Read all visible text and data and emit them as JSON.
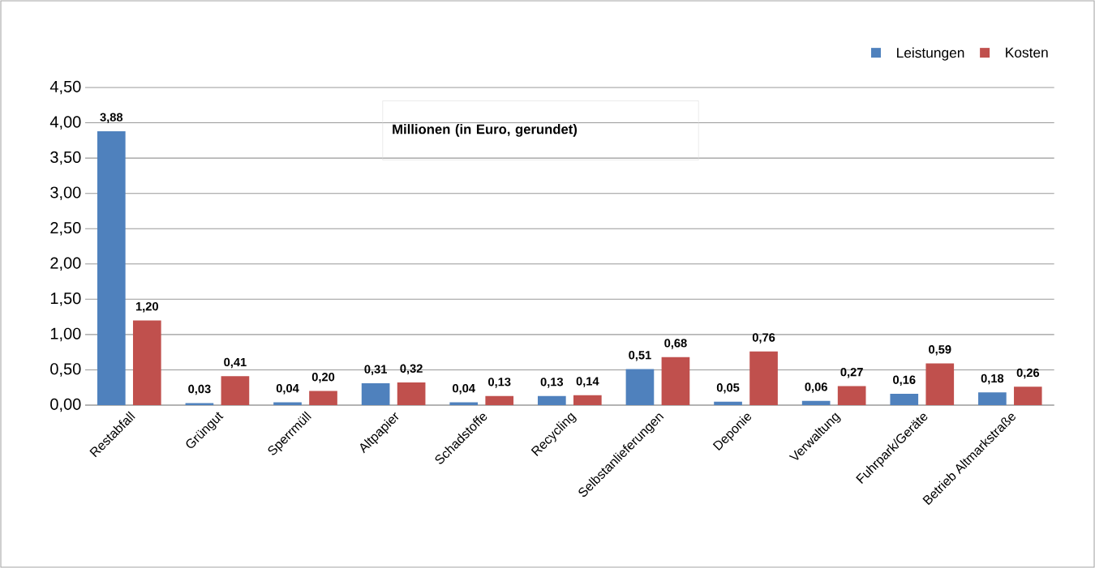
{
  "chart_data": {
    "type": "bar",
    "categories": [
      "Restabfall",
      "Grüngut",
      "Sperrmüll",
      "Altpapier",
      "Schadstoffe",
      "Recycling",
      "Selbstanlieferungen",
      "Deponie",
      "Verwaltung",
      "Fuhrpark/Geräte",
      "Betrieb Altmarkstraße"
    ],
    "series": [
      {
        "name": "Leistungen",
        "color": "#4f81bd",
        "values": [
          3.88,
          0.03,
          0.04,
          0.31,
          0.04,
          0.13,
          0.51,
          0.05,
          0.06,
          0.16,
          0.18
        ],
        "value_labels": [
          "3,88",
          "0,03",
          "0,04",
          "0,31",
          "0,04",
          "0,13",
          "0,51",
          "0,05",
          "0,06",
          "0,16",
          "0,18"
        ]
      },
      {
        "name": "Kosten",
        "color": "#c0504d",
        "values": [
          1.2,
          0.41,
          0.2,
          0.32,
          0.13,
          0.14,
          0.68,
          0.76,
          0.27,
          0.59,
          0.26
        ],
        "value_labels": [
          "1,20",
          "0,41",
          "0,20",
          "0,32",
          "0,13",
          "0,14",
          "0,68",
          "0,76",
          "0,27",
          "0,59",
          "0,26"
        ]
      }
    ],
    "ylim": [
      0,
      4.5
    ],
    "yticks": [
      {
        "value": 0,
        "label": "0,00"
      },
      {
        "value": 0.5,
        "label": "0,50"
      },
      {
        "value": 1,
        "label": "1,00"
      },
      {
        "value": 1.5,
        "label": "1,50"
      },
      {
        "value": 2,
        "label": "2,00"
      },
      {
        "value": 2.5,
        "label": "2,50"
      },
      {
        "value": 3,
        "label": "3,00"
      },
      {
        "value": 3.5,
        "label": "3,50"
      },
      {
        "value": 4,
        "label": "4,00"
      },
      {
        "value": 4.5,
        "label": "4,50"
      }
    ],
    "grid": "y",
    "legend": "top right",
    "annotations": [
      "Millionen (in Euro, gerundet)"
    ]
  }
}
